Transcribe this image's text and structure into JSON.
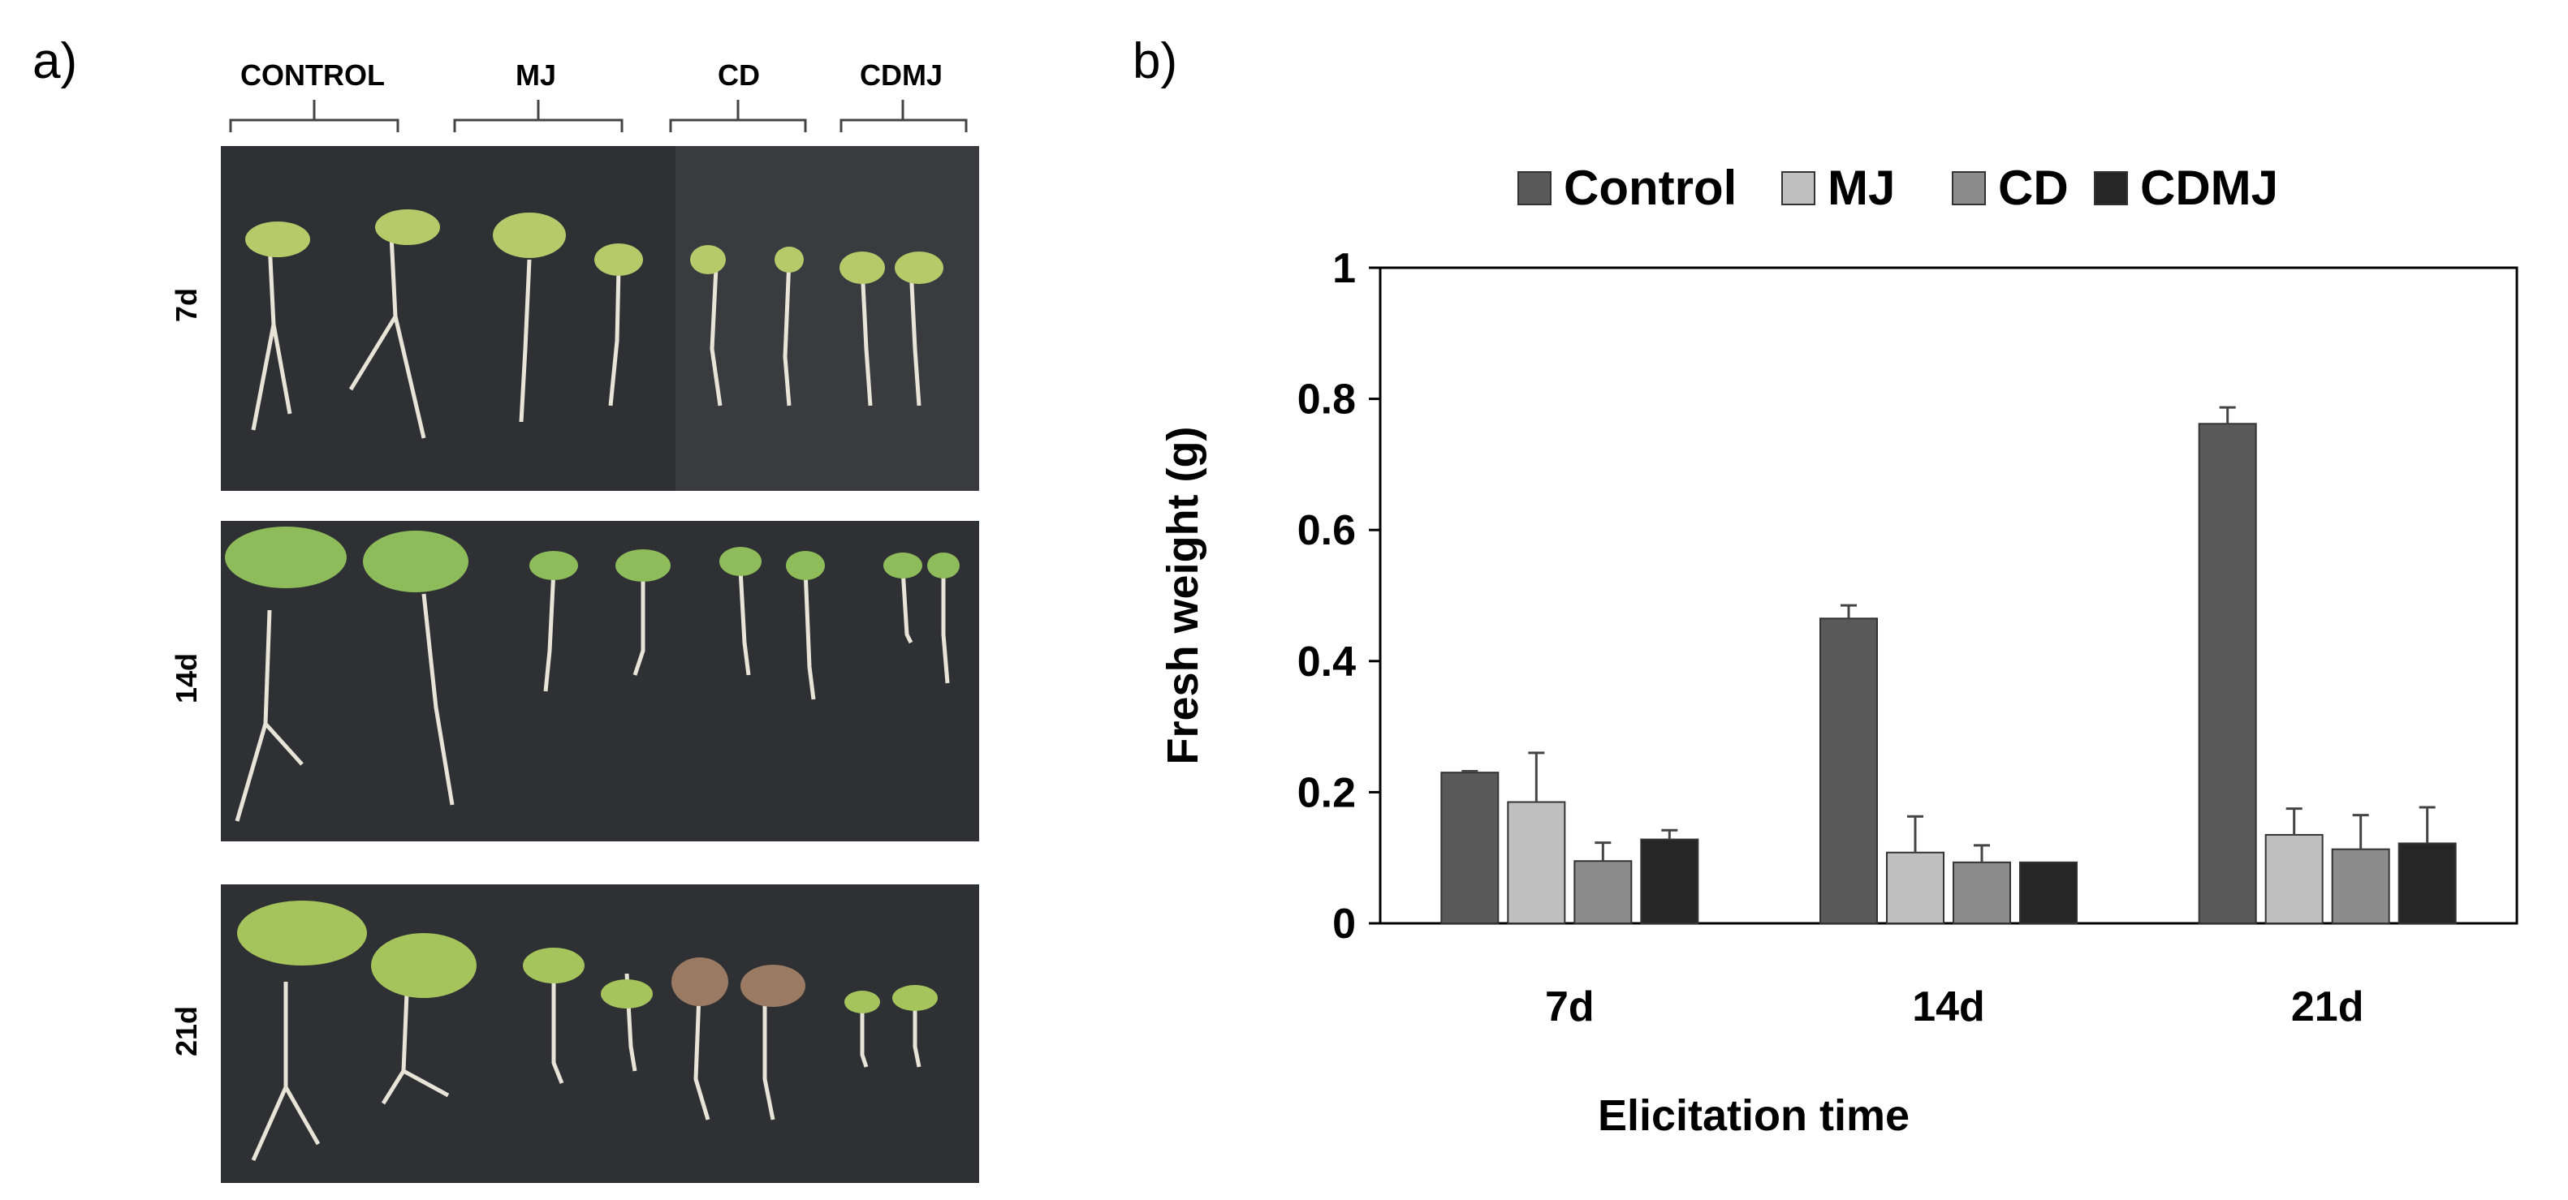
{
  "panel_a": {
    "label": "a)",
    "groups": [
      "CONTROL",
      "MJ",
      "CD",
      "CDMJ"
    ],
    "rows": [
      "7d",
      "14d",
      "21d"
    ],
    "photo_description_icon": "seedlings-photo"
  },
  "panel_b": {
    "label": "b)"
  },
  "chart_data": {
    "type": "bar",
    "title": "",
    "xlabel": "Elicitation time",
    "ylabel": "Fresh weight (g)",
    "categories": [
      "7d",
      "14d",
      "21d"
    ],
    "ylim": [
      0,
      1
    ],
    "yticks": [
      "0",
      "0.2",
      "0.4",
      "0.6",
      "0.8",
      "1"
    ],
    "legend_position": "top",
    "grid": false,
    "series": [
      {
        "name": "Control",
        "color": "#595959",
        "values": [
          0.23,
          0.465,
          0.762
        ],
        "errors": [
          0.002,
          0.02,
          0.025
        ]
      },
      {
        "name": "MJ",
        "color": "#bfbfbf",
        "values": [
          0.185,
          0.108,
          0.135
        ],
        "errors": [
          0.075,
          0.055,
          0.04
        ]
      },
      {
        "name": "CD",
        "color": "#8c8c8c",
        "values": [
          0.095,
          0.093,
          0.113
        ],
        "errors": [
          0.028,
          0.026,
          0.052
        ]
      },
      {
        "name": "CDMJ",
        "color": "#262626",
        "values": [
          0.128,
          0.093,
          0.122
        ],
        "errors": [
          0.014,
          0.0,
          0.055
        ]
      }
    ]
  }
}
